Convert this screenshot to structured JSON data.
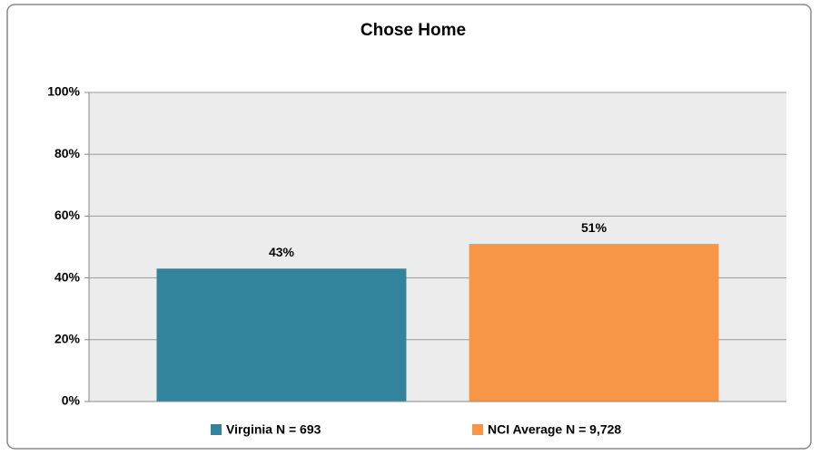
{
  "chart_data": {
    "type": "bar",
    "title": "Chose Home",
    "categories": [
      null
    ],
    "series": [
      {
        "name": "Virginia N = 693",
        "color": "#31849b",
        "values": [
          43
        ],
        "value_labels": [
          "43%"
        ]
      },
      {
        "name": "NCI Average N = 9,728",
        "color": "#f79646",
        "values": [
          51
        ],
        "value_labels": [
          "51%"
        ]
      }
    ],
    "ylim": [
      0,
      100
    ],
    "yticks": [
      {
        "value": 0,
        "label": "0%"
      },
      {
        "value": 20,
        "label": "20%"
      },
      {
        "value": 40,
        "label": "40%"
      },
      {
        "value": 60,
        "label": "60%"
      },
      {
        "value": 80,
        "label": "80%"
      },
      {
        "value": 100,
        "label": "100%"
      }
    ],
    "grid": true,
    "legend": "bottom"
  }
}
